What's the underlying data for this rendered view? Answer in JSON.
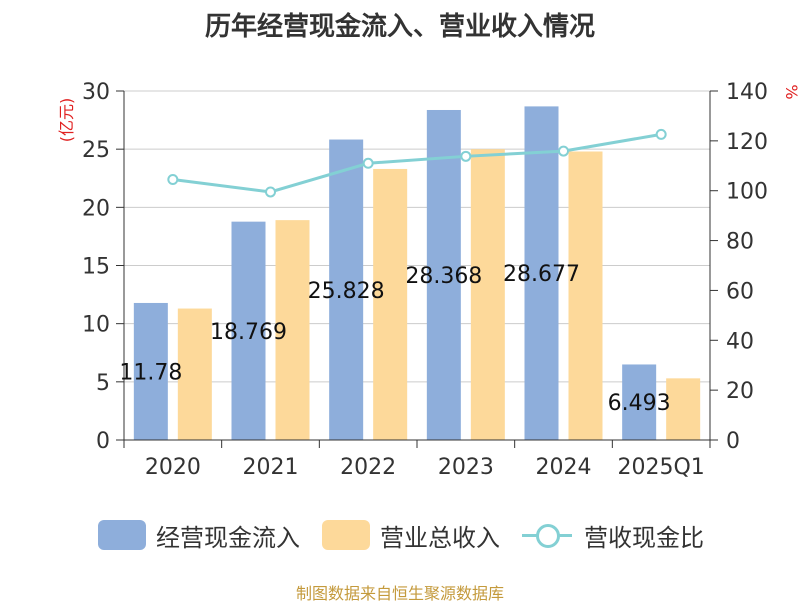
{
  "title": "历年经营现金流入、营业收入情况",
  "source_note": "制图数据来自恒生聚源数据库",
  "legend": {
    "bar1": "经营现金流入",
    "bar2": "营业总收入",
    "line": "营收现金比"
  },
  "chart_data": {
    "type": "bar",
    "title": "历年经营现金流入、营业收入情况",
    "categories": [
      "2020",
      "2021",
      "2022",
      "2023",
      "2024",
      "2025Q1"
    ],
    "y_left": {
      "label": "(亿元)",
      "range": [
        0,
        30
      ],
      "ticks": [
        0,
        5,
        10,
        15,
        20,
        25,
        30
      ]
    },
    "y_right": {
      "label": "%",
      "range": [
        0,
        140
      ],
      "ticks": [
        0,
        20,
        40,
        60,
        80,
        100,
        120,
        140
      ]
    },
    "grid": true,
    "legend_position": "bottom",
    "series": [
      {
        "name": "经营现金流入",
        "type": "bar",
        "axis": "left",
        "color": "#8eaedb",
        "values": [
          11.78,
          18.769,
          25.828,
          28.368,
          28.677,
          6.493
        ],
        "data_labels": [
          "11.78",
          "18.769",
          "25.828",
          "28.368",
          "28.677",
          "6.493"
        ]
      },
      {
        "name": "营业总收入",
        "type": "bar",
        "axis": "left",
        "color": "#fdd99a",
        "values": [
          11.3,
          18.9,
          23.3,
          25.0,
          24.8,
          5.3
        ]
      },
      {
        "name": "营收现金比",
        "type": "line",
        "axis": "right",
        "color": "#83d0d4",
        "values": [
          104.5,
          99.5,
          111.0,
          113.8,
          115.9,
          122.6
        ]
      }
    ]
  }
}
